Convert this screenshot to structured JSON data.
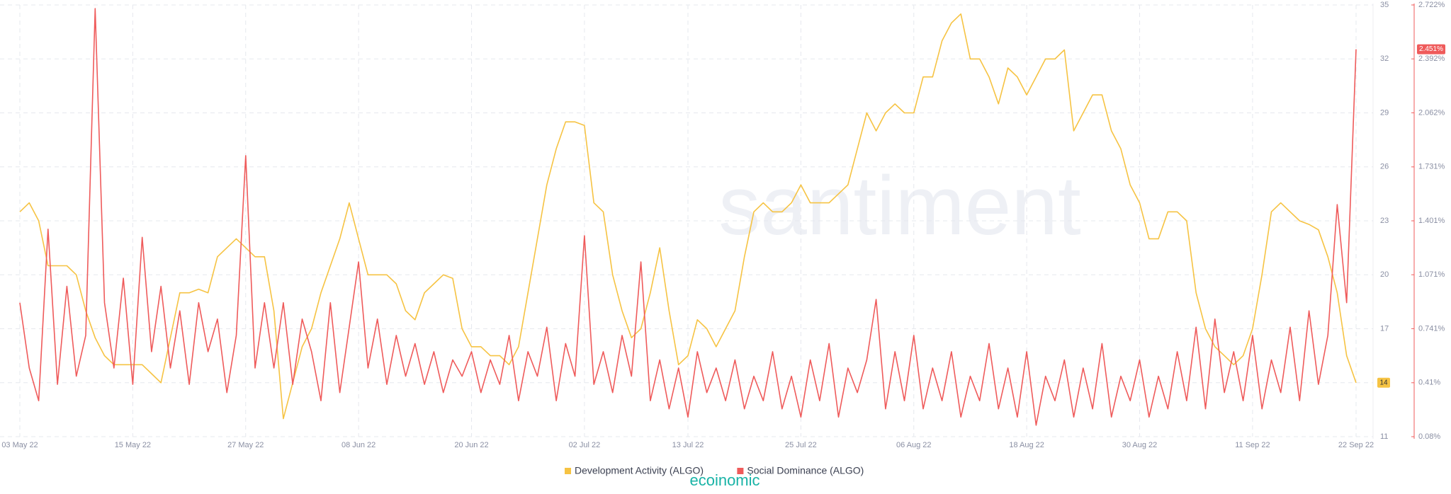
{
  "chart_data": {
    "type": "line",
    "watermark": "santiment",
    "categories": [
      "03 May 22",
      null,
      null,
      null,
      null,
      null,
      null,
      null,
      null,
      null,
      null,
      null,
      "15 May 22",
      null,
      null,
      null,
      null,
      null,
      null,
      null,
      null,
      null,
      null,
      null,
      "27 May 22",
      null,
      null,
      null,
      null,
      null,
      null,
      null,
      null,
      null,
      null,
      null,
      "08 Jun 22",
      null,
      null,
      null,
      null,
      null,
      null,
      null,
      null,
      null,
      null,
      null,
      "20 Jun 22",
      null,
      null,
      null,
      null,
      null,
      null,
      null,
      null,
      null,
      null,
      null,
      "02 Jul 22",
      null,
      null,
      null,
      null,
      null,
      null,
      null,
      null,
      null,
      null,
      "13 Jul 22",
      null,
      null,
      null,
      null,
      null,
      null,
      null,
      null,
      null,
      null,
      null,
      "25 Jul 22",
      null,
      null,
      null,
      null,
      null,
      null,
      null,
      null,
      null,
      null,
      null,
      "06 Aug 22",
      null,
      null,
      null,
      null,
      null,
      null,
      null,
      null,
      null,
      null,
      null,
      "18 Aug 22",
      null,
      null,
      null,
      null,
      null,
      null,
      null,
      null,
      null,
      null,
      null,
      "30 Aug 22",
      null,
      null,
      null,
      null,
      null,
      null,
      null,
      null,
      null,
      null,
      null,
      "11 Sep 22",
      null,
      null,
      null,
      null,
      null,
      null,
      null,
      null,
      null,
      null,
      "22 Sep 22"
    ],
    "series": [
      {
        "name": "Development Activity (ALGO)",
        "color": "#f6c343",
        "values": [
          23.5,
          24,
          23,
          20.5,
          20.5,
          20.5,
          20,
          18,
          16.5,
          15.5,
          15,
          15,
          15,
          15,
          14.5,
          14,
          16.5,
          19,
          19,
          19.2,
          19,
          21,
          21.5,
          22,
          21.5,
          21,
          21,
          18,
          12,
          14,
          16,
          17,
          19,
          20.5,
          22,
          24,
          22,
          20,
          20,
          20,
          19.5,
          18,
          17.5,
          19,
          19.5,
          20,
          19.8,
          17,
          16,
          16,
          15.5,
          15.5,
          15,
          16,
          19,
          22,
          25,
          27,
          28.5,
          28.5,
          28.3,
          24,
          23.5,
          20,
          18,
          16.5,
          17,
          19,
          21.5,
          18,
          15,
          15.5,
          17.5,
          17,
          16,
          17,
          18,
          21,
          23.5,
          24,
          23.5,
          23.5,
          24,
          25,
          24,
          24,
          24,
          24.5,
          25,
          27,
          29,
          28,
          29,
          29.5,
          29,
          29,
          31,
          31,
          33,
          34,
          34.5,
          32,
          32,
          31,
          29.5,
          31.5,
          31,
          30,
          31,
          32,
          32,
          32.5,
          28,
          29,
          30,
          30,
          28,
          27,
          25,
          24,
          22,
          22,
          23.5,
          23.5,
          23,
          19,
          17,
          16,
          15.5,
          15,
          15.5,
          17,
          20,
          23.5,
          24,
          23.5,
          23,
          22.8,
          22.5,
          21,
          19,
          15.5,
          14
        ],
        "value_labels": [
          null,
          null,
          null,
          null,
          null,
          null,
          null,
          null,
          null,
          null,
          null,
          null,
          null,
          null,
          null,
          null,
          null,
          null,
          null,
          null,
          null,
          null,
          null,
          null,
          null,
          null,
          null,
          null,
          null,
          null,
          null,
          null,
          null,
          null,
          null,
          null,
          null,
          null,
          null,
          null,
          null,
          null,
          null,
          null,
          null,
          null,
          null,
          null,
          null,
          null,
          null,
          null,
          null,
          null,
          null,
          null,
          null,
          null,
          null,
          null,
          null,
          null,
          null,
          null,
          null,
          null,
          null,
          null,
          null,
          null,
          null,
          null,
          null,
          null,
          null,
          null,
          null,
          null,
          null,
          null,
          null,
          null,
          null,
          null,
          null,
          null,
          null,
          null,
          null,
          null,
          null,
          null,
          null,
          null,
          null,
          null,
          null,
          null,
          null,
          null,
          null,
          null,
          null,
          null,
          null,
          null,
          null,
          null,
          null,
          null,
          null,
          null,
          null,
          null,
          null,
          null,
          null,
          null,
          null,
          null,
          null,
          null,
          null,
          null,
          null,
          null,
          null,
          null,
          null,
          null,
          null,
          null,
          null,
          null,
          null,
          null,
          null,
          null,
          null,
          null,
          null,
          null,
          "14"
        ]
      },
      {
        "name": "Social Dominance (ALGO)",
        "color": "#ef5b5b",
        "axis": "y2",
        "values": [
          0.9,
          0.5,
          0.3,
          1.35,
          0.4,
          1.0,
          0.45,
          0.7,
          2.7,
          0.9,
          0.5,
          1.05,
          0.4,
          1.3,
          0.6,
          1.0,
          0.5,
          0.85,
          0.4,
          0.9,
          0.6,
          0.8,
          0.35,
          0.7,
          1.8,
          0.5,
          0.9,
          0.5,
          0.9,
          0.4,
          0.8,
          0.6,
          0.3,
          0.9,
          0.35,
          0.75,
          1.15,
          0.5,
          0.8,
          0.4,
          0.7,
          0.45,
          0.65,
          0.4,
          0.6,
          0.35,
          0.55,
          0.45,
          0.6,
          0.35,
          0.55,
          0.4,
          0.7,
          0.3,
          0.6,
          0.45,
          0.75,
          0.3,
          0.65,
          0.45,
          1.31,
          0.4,
          0.6,
          0.35,
          0.7,
          0.45,
          1.15,
          0.3,
          0.55,
          0.25,
          0.5,
          0.2,
          0.6,
          0.35,
          0.5,
          0.3,
          0.55,
          0.25,
          0.45,
          0.3,
          0.6,
          0.25,
          0.45,
          0.2,
          0.55,
          0.3,
          0.65,
          0.2,
          0.5,
          0.35,
          0.55,
          0.92,
          0.25,
          0.6,
          0.3,
          0.7,
          0.25,
          0.5,
          0.3,
          0.6,
          0.2,
          0.45,
          0.3,
          0.65,
          0.25,
          0.5,
          0.2,
          0.6,
          0.15,
          0.45,
          0.3,
          0.55,
          0.2,
          0.5,
          0.25,
          0.65,
          0.2,
          0.45,
          0.3,
          0.55,
          0.2,
          0.45,
          0.25,
          0.6,
          0.3,
          0.75,
          0.25,
          0.8,
          0.35,
          0.6,
          0.3,
          0.7,
          0.25,
          0.55,
          0.35,
          0.75,
          0.3,
          0.85,
          0.4,
          0.7,
          1.5,
          0.9,
          2.451
        ],
        "value_labels": [
          null,
          null,
          null,
          null,
          null,
          null,
          null,
          null,
          null,
          null,
          null,
          null,
          null,
          null,
          null,
          null,
          null,
          null,
          null,
          null,
          null,
          null,
          null,
          null,
          null,
          null,
          null,
          null,
          null,
          null,
          null,
          null,
          null,
          null,
          null,
          null,
          null,
          null,
          null,
          null,
          null,
          null,
          null,
          null,
          null,
          null,
          null,
          null,
          null,
          null,
          null,
          null,
          null,
          null,
          null,
          null,
          null,
          null,
          null,
          null,
          null,
          null,
          null,
          null,
          null,
          null,
          null,
          null,
          null,
          null,
          null,
          null,
          null,
          null,
          null,
          null,
          null,
          null,
          null,
          null,
          null,
          null,
          null,
          null,
          null,
          null,
          null,
          null,
          null,
          null,
          null,
          null,
          null,
          null,
          null,
          null,
          null,
          null,
          null,
          null,
          null,
          null,
          null,
          null,
          null,
          null,
          null,
          null,
          null,
          null,
          null,
          null,
          null,
          null,
          null,
          null,
          null,
          null,
          null,
          null,
          null,
          null,
          null,
          null,
          null,
          null,
          null,
          null,
          null,
          null,
          null,
          null,
          null,
          null,
          null,
          null,
          null,
          null,
          null,
          null,
          null,
          null,
          "2.451%"
        ]
      }
    ],
    "ylim": [
      11,
      35
    ],
    "yticks": [
      11,
      14,
      17,
      20,
      23,
      26,
      29,
      32,
      35
    ],
    "y2lim": [
      0.08,
      2.722
    ],
    "y2ticks": [
      {
        "value": 0.08,
        "label": "0.08%"
      },
      {
        "value": 0.41,
        "label": "0.41%"
      },
      {
        "value": 0.741,
        "label": "0.741%"
      },
      {
        "value": 1.071,
        "label": "1.071%"
      },
      {
        "value": 1.401,
        "label": "1.401%"
      },
      {
        "value": 1.731,
        "label": "1.731%"
      },
      {
        "value": 2.062,
        "label": "2.062%"
      },
      {
        "value": 2.392,
        "label": "2.392%"
      },
      {
        "value": 2.722,
        "label": "2.722%"
      }
    ],
    "grid": true
  },
  "logo": "ecoinomic"
}
